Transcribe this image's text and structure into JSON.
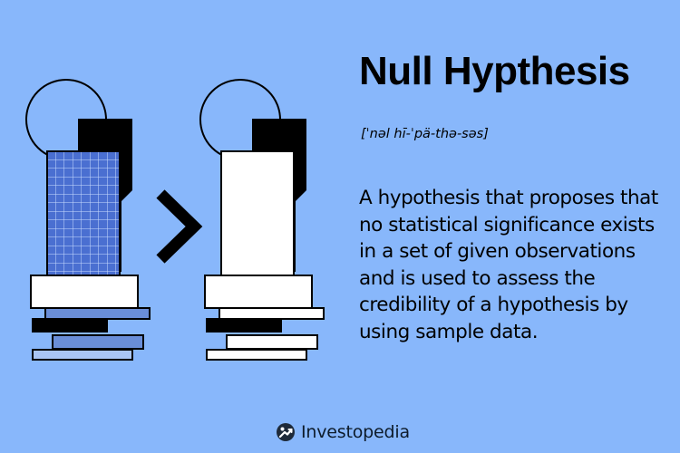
{
  "term": "Null Hypthesis",
  "pronunciation": "[ˈnəl hī-ˈpä-thə-səs]",
  "definition": "A hypothesis that proposes that no statistical significance exists in a set of given observations and is used to assess the credibility of a hypothesis by using sample data.",
  "brand": {
    "name": "Investopedia",
    "logo_icon": "investopedia-logo-icon"
  },
  "comparison_symbol": ">",
  "colors": {
    "background": "#88b7fb",
    "ink": "#000000",
    "panel_fill": "#ffffff",
    "grid_fill": "#4a6fd1",
    "slab_blue": "#6a8ed8",
    "slab_light": "#a9c5f5",
    "logo_blue": "#1e4bd6"
  }
}
